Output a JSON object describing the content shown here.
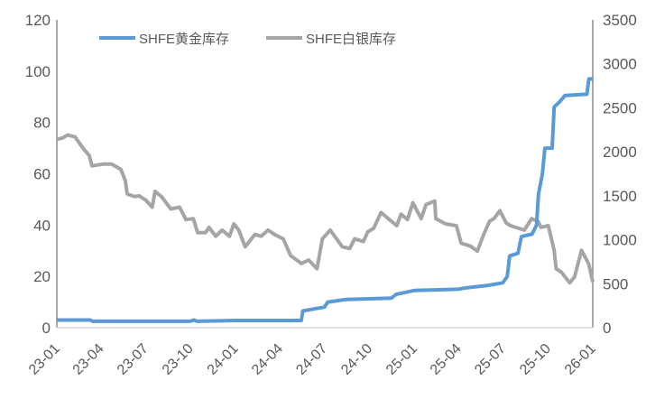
{
  "chart_data": {
    "type": "line",
    "title": "",
    "xlabel": "",
    "ylabel": "",
    "y2label": "",
    "legend_position": "top",
    "grid": false,
    "x_ticks": [
      "23-01",
      "23-04",
      "23-07",
      "23-10",
      "24-01",
      "24-04",
      "24-07",
      "24-10",
      "25-01",
      "25-04",
      "25-07",
      "25-10",
      "26-01"
    ],
    "x_tick_dates": [
      "2023-01-01",
      "2023-04-01",
      "2023-07-01",
      "2023-10-01",
      "2024-01-01",
      "2024-04-01",
      "2024-07-01",
      "2024-10-01",
      "2025-01-01",
      "2025-04-01",
      "2025-07-01",
      "2025-10-01",
      "2026-01-01"
    ],
    "xlim": [
      "2023-01-01",
      "2026-01-01"
    ],
    "ylim": [
      0,
      120
    ],
    "y_ticks": [
      0,
      20,
      40,
      60,
      80,
      100,
      120
    ],
    "y2lim": [
      0,
      3500
    ],
    "y2_ticks": [
      0,
      500,
      1000,
      1500,
      2000,
      2500,
      3000,
      3500
    ],
    "series": [
      {
        "name": "SHFE黄金库存",
        "axis": "left",
        "color": "#5b9bd5",
        "points": [
          [
            "2023-01-01",
            3
          ],
          [
            "2023-03-10",
            3
          ],
          [
            "2023-03-15",
            2.5
          ],
          [
            "2023-10-01",
            2.5
          ],
          [
            "2023-10-08",
            3
          ],
          [
            "2023-10-15",
            2.5
          ],
          [
            "2024-01-01",
            2.8
          ],
          [
            "2024-05-15",
            2.8
          ],
          [
            "2024-05-18",
            6.5
          ],
          [
            "2024-06-15",
            7.5
          ],
          [
            "2024-07-01",
            8
          ],
          [
            "2024-07-08",
            10
          ],
          [
            "2024-08-15",
            11
          ],
          [
            "2024-11-15",
            11.5
          ],
          [
            "2024-11-25",
            13
          ],
          [
            "2025-01-01",
            14.5
          ],
          [
            "2025-04-01",
            15
          ],
          [
            "2025-04-15",
            15.5
          ],
          [
            "2025-06-01",
            16.5
          ],
          [
            "2025-07-01",
            17.5
          ],
          [
            "2025-07-10",
            20
          ],
          [
            "2025-07-15",
            28
          ],
          [
            "2025-08-01",
            29
          ],
          [
            "2025-08-08",
            35.5
          ],
          [
            "2025-08-30",
            36.5
          ],
          [
            "2025-09-08",
            40
          ],
          [
            "2025-09-12",
            52
          ],
          [
            "2025-09-20",
            60
          ],
          [
            "2025-09-25",
            70
          ],
          [
            "2025-10-10",
            70
          ],
          [
            "2025-10-14",
            86
          ],
          [
            "2025-10-25",
            88
          ],
          [
            "2025-11-05",
            90.5
          ],
          [
            "2025-12-20",
            91
          ],
          [
            "2025-12-24",
            97
          ],
          [
            "2026-01-01",
            97
          ]
        ]
      },
      {
        "name": "SHFE白银库存",
        "axis": "right",
        "color": "#a5a5a5",
        "points": [
          [
            "2023-01-01",
            2140
          ],
          [
            "2023-01-14",
            2160
          ],
          [
            "2023-01-23",
            2190
          ],
          [
            "2023-02-07",
            2170
          ],
          [
            "2023-02-25",
            2030
          ],
          [
            "2023-03-08",
            1960
          ],
          [
            "2023-03-14",
            1840
          ],
          [
            "2023-04-05",
            1860
          ],
          [
            "2023-04-23",
            1860
          ],
          [
            "2023-05-12",
            1800
          ],
          [
            "2023-05-21",
            1670
          ],
          [
            "2023-05-25",
            1520
          ],
          [
            "2023-06-09",
            1490
          ],
          [
            "2023-06-18",
            1500
          ],
          [
            "2023-07-02",
            1450
          ],
          [
            "2023-07-15",
            1370
          ],
          [
            "2023-07-21",
            1550
          ],
          [
            "2023-08-03",
            1490
          ],
          [
            "2023-08-22",
            1350
          ],
          [
            "2023-09-09",
            1370
          ],
          [
            "2023-09-22",
            1230
          ],
          [
            "2023-10-07",
            1240
          ],
          [
            "2023-10-16",
            1080
          ],
          [
            "2023-11-01",
            1080
          ],
          [
            "2023-11-08",
            1140
          ],
          [
            "2023-11-22",
            1040
          ],
          [
            "2023-12-05",
            1110
          ],
          [
            "2023-12-20",
            1040
          ],
          [
            "2023-12-29",
            1180
          ],
          [
            "2024-01-08",
            1110
          ],
          [
            "2024-01-21",
            920
          ],
          [
            "2024-02-10",
            1060
          ],
          [
            "2024-02-23",
            1040
          ],
          [
            "2024-03-08",
            1110
          ],
          [
            "2024-03-21",
            1060
          ],
          [
            "2024-04-08",
            1010
          ],
          [
            "2024-04-23",
            820
          ],
          [
            "2024-05-15",
            730
          ],
          [
            "2024-05-30",
            770
          ],
          [
            "2024-06-16",
            670
          ],
          [
            "2024-06-27",
            1010
          ],
          [
            "2024-07-13",
            1110
          ],
          [
            "2024-08-07",
            920
          ],
          [
            "2024-08-22",
            900
          ],
          [
            "2024-09-01",
            1010
          ],
          [
            "2024-09-19",
            980
          ],
          [
            "2024-09-28",
            1090
          ],
          [
            "2024-10-10",
            1130
          ],
          [
            "2024-10-25",
            1310
          ],
          [
            "2024-11-26",
            1160
          ],
          [
            "2024-12-05",
            1290
          ],
          [
            "2024-12-18",
            1230
          ],
          [
            "2024-12-29",
            1420
          ],
          [
            "2025-01-15",
            1240
          ],
          [
            "2025-01-25",
            1400
          ],
          [
            "2025-02-12",
            1440
          ],
          [
            "2025-02-14",
            1240
          ],
          [
            "2025-03-06",
            1180
          ],
          [
            "2025-03-28",
            1160
          ],
          [
            "2025-04-07",
            960
          ],
          [
            "2025-04-25",
            930
          ],
          [
            "2025-05-10",
            870
          ],
          [
            "2025-05-23",
            1060
          ],
          [
            "2025-06-04",
            1210
          ],
          [
            "2025-06-13",
            1240
          ],
          [
            "2025-06-25",
            1330
          ],
          [
            "2025-07-08",
            1190
          ],
          [
            "2025-07-17",
            1160
          ],
          [
            "2025-08-14",
            1110
          ],
          [
            "2025-08-29",
            1240
          ],
          [
            "2025-09-11",
            1210
          ],
          [
            "2025-09-17",
            1140
          ],
          [
            "2025-10-02",
            1160
          ],
          [
            "2025-10-14",
            880
          ],
          [
            "2025-10-18",
            670
          ],
          [
            "2025-10-29",
            630
          ],
          [
            "2025-11-15",
            510
          ],
          [
            "2025-11-25",
            580
          ],
          [
            "2025-12-09",
            880
          ],
          [
            "2025-12-14",
            830
          ],
          [
            "2025-12-24",
            720
          ],
          [
            "2026-01-01",
            520
          ]
        ]
      }
    ]
  }
}
